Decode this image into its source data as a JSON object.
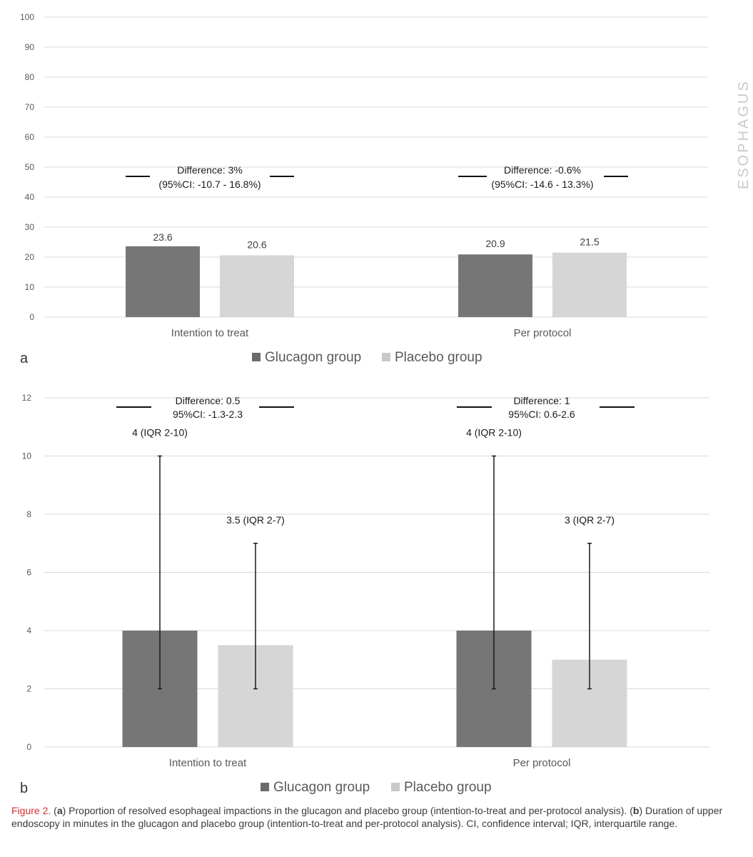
{
  "chart_data": [
    {
      "type": "bar",
      "panel_label": "a",
      "categories": [
        "Intention to treat",
        "Per protocol"
      ],
      "series": [
        {
          "name": "Glucagon group",
          "values": [
            23.6,
            20.9
          ],
          "labels": [
            "23.6",
            "20.9"
          ],
          "color": "#767676"
        },
        {
          "name": "Placebo group",
          "values": [
            20.6,
            21.5
          ],
          "labels": [
            "20.6",
            "21.5"
          ],
          "color": "#d6d6d6"
        }
      ],
      "ylim": [
        0,
        100
      ],
      "yticks": [
        "0",
        "10",
        "20",
        "30",
        "40",
        "50",
        "60",
        "70",
        "80",
        "90",
        "100"
      ],
      "grid": true,
      "legend": "bottom",
      "annotations": [
        {
          "line1": "Difference: 3%",
          "line2": "(95%CI: -10.7 - 16.8%)"
        },
        {
          "line1": "Difference: -0.6%",
          "line2": "(95%CI: -14.6 - 13.3%)"
        }
      ]
    },
    {
      "type": "bar",
      "panel_label": "b",
      "categories": [
        "Intention to treat",
        "Per protocol"
      ],
      "series": [
        {
          "name": "Glucagon group",
          "values": [
            4,
            4
          ],
          "err_low": [
            2,
            2
          ],
          "err_high": [
            10,
            10
          ],
          "labels": [
            "4 (IQR 2-10)",
            "4 (IQR 2-10)"
          ],
          "color": "#767676"
        },
        {
          "name": "Placebo group",
          "values": [
            3.5,
            3
          ],
          "err_low": [
            2,
            2
          ],
          "err_high": [
            7,
            7
          ],
          "labels": [
            "3.5 (IQR 2-7)",
            "3 (IQR 2-7)"
          ],
          "color": "#d6d6d6"
        }
      ],
      "ylim": [
        0,
        12
      ],
      "yticks": [
        "0",
        "2",
        "4",
        "6",
        "8",
        "10",
        "12"
      ],
      "grid": true,
      "legend": "bottom",
      "annotations": [
        {
          "line1": "Difference: 0.5",
          "line2": "95%CI: -1.3-2.3"
        },
        {
          "line1": "Difference: 1",
          "line2": "95%CI: 0.6-2.6"
        }
      ]
    }
  ],
  "side_text": "ESOPHAGUS",
  "caption": {
    "figure_label": "Figure 2.",
    "open_a": "(",
    "bold_a": "a",
    "text_a": ") Proportion of resolved esophageal impactions in the glucagon and placebo group (intention-to-treat and per-protocol analysis). (",
    "bold_b": "b",
    "text_b": ") Duration of upper endoscopy in minutes in the glucagon and placebo group (intention-to-treat and per-protocol analysis). CI, confidence interval; IQR, interquartile range."
  }
}
